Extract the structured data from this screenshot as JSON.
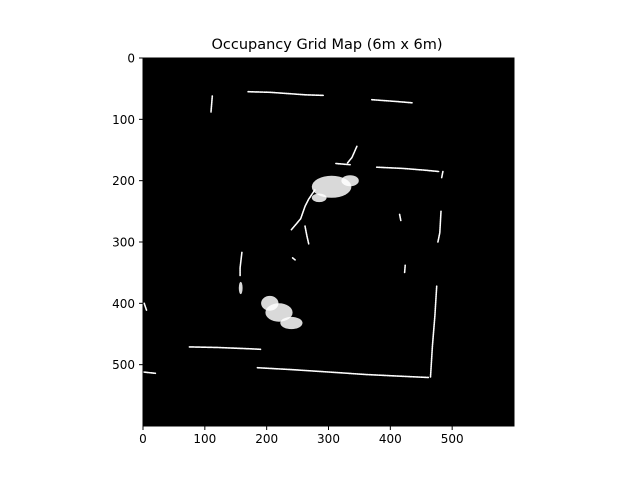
{
  "chart_data": {
    "type": "heatmap",
    "title": "Occupancy Grid Map (6m x 6m)",
    "xlabel": "",
    "ylabel": "",
    "xlim": [
      0,
      600
    ],
    "ylim": [
      600,
      0
    ],
    "x_ticks": [
      0,
      100,
      200,
      300,
      400,
      500
    ],
    "y_ticks": [
      0,
      100,
      200,
      300,
      400,
      500
    ],
    "grid": false,
    "background_color": "#000000",
    "occupied_color": "#ffffff",
    "occupied_segments": [
      {
        "points": [
          [
            112,
            62
          ],
          [
            110,
            88
          ]
        ]
      },
      {
        "points": [
          [
            170,
            55
          ],
          [
            205,
            56
          ],
          [
            235,
            58
          ],
          [
            262,
            60
          ],
          [
            292,
            61
          ]
        ]
      },
      {
        "points": [
          [
            370,
            68
          ],
          [
            410,
            71
          ],
          [
            435,
            73
          ]
        ]
      },
      {
        "points": [
          [
            346,
            144
          ],
          [
            338,
            162
          ],
          [
            330,
            172
          ]
        ]
      },
      {
        "points": [
          [
            378,
            178
          ],
          [
            420,
            180
          ],
          [
            456,
            183
          ],
          [
            478,
            185
          ]
        ]
      },
      {
        "points": [
          [
            485,
            185
          ],
          [
            483,
            195
          ]
        ]
      },
      {
        "points": [
          [
            482,
            250
          ],
          [
            480,
            285
          ],
          [
            477,
            300
          ]
        ]
      },
      {
        "points": [
          [
            312,
            172
          ],
          [
            335,
            174
          ]
        ]
      },
      {
        "points": [
          [
            278,
            215
          ],
          [
            268,
            230
          ],
          [
            262,
            242
          ],
          [
            255,
            262
          ],
          [
            240,
            280
          ]
        ]
      },
      {
        "points": [
          [
            262,
            274
          ],
          [
            265,
            290
          ],
          [
            268,
            303
          ]
        ]
      },
      {
        "points": [
          [
            160,
            317
          ],
          [
            157,
            342
          ],
          [
            157,
            355
          ]
        ]
      },
      {
        "points": [
          [
            242,
            326
          ],
          [
            247,
            330
          ]
        ]
      },
      {
        "points": [
          [
            424,
            338
          ],
          [
            423,
            350
          ]
        ]
      },
      {
        "points": [
          [
            475,
            372
          ],
          [
            472,
            420
          ],
          [
            468,
            470
          ],
          [
            465,
            520
          ]
        ]
      },
      {
        "points": [
          [
            75,
            471
          ],
          [
            122,
            472
          ],
          [
            170,
            474
          ],
          [
            190,
            475
          ]
        ]
      },
      {
        "points": [
          [
            185,
            505
          ],
          [
            240,
            508
          ],
          [
            300,
            512
          ],
          [
            360,
            516
          ],
          [
            420,
            519
          ],
          [
            462,
            521
          ]
        ]
      },
      {
        "points": [
          [
            0,
            512
          ],
          [
            20,
            514
          ]
        ]
      },
      {
        "points": [
          [
            2,
            400
          ],
          [
            6,
            412
          ]
        ]
      },
      {
        "points": [
          [
            415,
            255
          ],
          [
            417,
            265
          ]
        ]
      }
    ],
    "occupied_blobs": [
      {
        "cx": 305,
        "cy": 210,
        "rx": 32,
        "ry": 18
      },
      {
        "cx": 335,
        "cy": 200,
        "rx": 14,
        "ry": 9
      },
      {
        "cx": 285,
        "cy": 228,
        "rx": 12,
        "ry": 7
      },
      {
        "cx": 205,
        "cy": 400,
        "rx": 14,
        "ry": 12
      },
      {
        "cx": 220,
        "cy": 415,
        "rx": 22,
        "ry": 15
      },
      {
        "cx": 240,
        "cy": 432,
        "rx": 18,
        "ry": 10
      },
      {
        "cx": 158,
        "cy": 375,
        "rx": 3,
        "ry": 10
      }
    ]
  }
}
